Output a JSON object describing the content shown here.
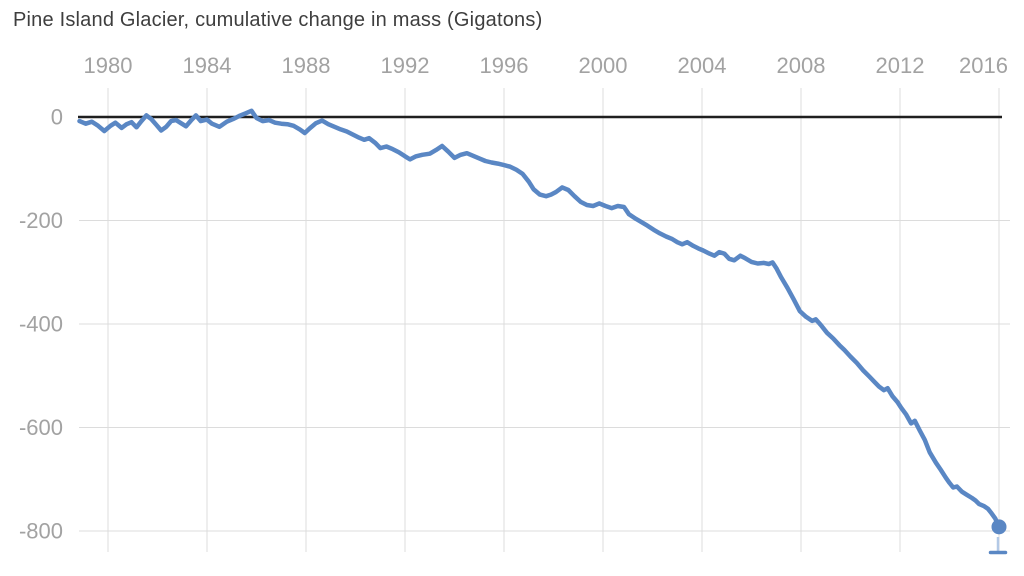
{
  "page": {
    "title": "Pine Island Glacier, cumulative change in mass (Gigatons)"
  },
  "colors": {
    "line": "#5a87c4",
    "end_marker": "#5a87c4",
    "zero_line": "#1f1f1f",
    "gridline": "#dcdcdc",
    "tick_label": "#a2a2a2",
    "title_text": "#3e3e3e",
    "scrubber_stem": "#b3c9e6",
    "scrubber_handle": "#5a87c4"
  },
  "chart_data": {
    "type": "line",
    "title": "Pine Island Glacier, cumulative change in mass (Gigatons)",
    "xlabel": "",
    "ylabel": "",
    "unit": "Gigatons",
    "grid": true,
    "legend_position": "none",
    "x_ticks": [
      1980,
      1984,
      1988,
      1992,
      1996,
      2000,
      2004,
      2008,
      2012,
      2016
    ],
    "y_ticks": [
      0,
      -200,
      -400,
      -600,
      -800
    ],
    "xlim": [
      1978.8,
      2016.45
    ],
    "ylim": [
      56,
      -841
    ],
    "end_point": {
      "x": 2016.0,
      "y": -792
    },
    "series": [
      {
        "name": "Cumulative change in mass (Gigatons)",
        "points": [
          [
            1978.85,
            -8
          ],
          [
            1979.1,
            -13
          ],
          [
            1979.35,
            -9
          ],
          [
            1979.6,
            -17
          ],
          [
            1979.85,
            -27
          ],
          [
            1980.1,
            -17
          ],
          [
            1980.3,
            -11
          ],
          [
            1980.55,
            -21
          ],
          [
            1980.75,
            -14
          ],
          [
            1980.95,
            -10
          ],
          [
            1981.15,
            -20
          ],
          [
            1981.35,
            -8
          ],
          [
            1981.55,
            3
          ],
          [
            1981.75,
            -4
          ],
          [
            1981.95,
            -15
          ],
          [
            1982.15,
            -26
          ],
          [
            1982.35,
            -19
          ],
          [
            1982.55,
            -8
          ],
          [
            1982.75,
            -6
          ],
          [
            1982.95,
            -12
          ],
          [
            1983.15,
            -18
          ],
          [
            1983.35,
            -7
          ],
          [
            1983.55,
            3
          ],
          [
            1983.75,
            -8
          ],
          [
            1984.0,
            -5
          ],
          [
            1984.2,
            -13
          ],
          [
            1984.5,
            -19
          ],
          [
            1984.8,
            -9
          ],
          [
            1985.05,
            -4
          ],
          [
            1985.3,
            2
          ],
          [
            1985.55,
            7
          ],
          [
            1985.8,
            12
          ],
          [
            1986.0,
            -2
          ],
          [
            1986.25,
            -8
          ],
          [
            1986.5,
            -6
          ],
          [
            1986.75,
            -11
          ],
          [
            1987.0,
            -13
          ],
          [
            1987.25,
            -14
          ],
          [
            1987.5,
            -17
          ],
          [
            1987.75,
            -24
          ],
          [
            1987.95,
            -31
          ],
          [
            1988.15,
            -22
          ],
          [
            1988.4,
            -12
          ],
          [
            1988.65,
            -7
          ],
          [
            1988.9,
            -14
          ],
          [
            1989.15,
            -19
          ],
          [
            1989.4,
            -24
          ],
          [
            1989.65,
            -28
          ],
          [
            1989.9,
            -34
          ],
          [
            1990.15,
            -40
          ],
          [
            1990.35,
            -44
          ],
          [
            1990.55,
            -41
          ],
          [
            1990.8,
            -50
          ],
          [
            1991.0,
            -60
          ],
          [
            1991.25,
            -57
          ],
          [
            1991.5,
            -62
          ],
          [
            1991.75,
            -68
          ],
          [
            1992.0,
            -76
          ],
          [
            1992.2,
            -82
          ],
          [
            1992.45,
            -76
          ],
          [
            1992.7,
            -73
          ],
          [
            1993.0,
            -71
          ],
          [
            1993.25,
            -64
          ],
          [
            1993.5,
            -56
          ],
          [
            1993.75,
            -67
          ],
          [
            1994.0,
            -79
          ],
          [
            1994.25,
            -73
          ],
          [
            1994.5,
            -70
          ],
          [
            1994.75,
            -75
          ],
          [
            1995.0,
            -80
          ],
          [
            1995.25,
            -85
          ],
          [
            1995.5,
            -88
          ],
          [
            1995.75,
            -90
          ],
          [
            1996.0,
            -93
          ],
          [
            1996.25,
            -96
          ],
          [
            1996.5,
            -102
          ],
          [
            1996.75,
            -110
          ],
          [
            1997.0,
            -125
          ],
          [
            1997.2,
            -140
          ],
          [
            1997.45,
            -150
          ],
          [
            1997.7,
            -153
          ],
          [
            1997.9,
            -150
          ],
          [
            1998.1,
            -145
          ],
          [
            1998.35,
            -136
          ],
          [
            1998.6,
            -141
          ],
          [
            1998.85,
            -153
          ],
          [
            1999.1,
            -164
          ],
          [
            1999.35,
            -170
          ],
          [
            1999.6,
            -172
          ],
          [
            1999.85,
            -167
          ],
          [
            2000.1,
            -172
          ],
          [
            2000.35,
            -176
          ],
          [
            2000.6,
            -172
          ],
          [
            2000.85,
            -174
          ],
          [
            2001.05,
            -188
          ],
          [
            2001.3,
            -196
          ],
          [
            2001.55,
            -203
          ],
          [
            2001.8,
            -210
          ],
          [
            2002.05,
            -218
          ],
          [
            2002.3,
            -225
          ],
          [
            2002.55,
            -231
          ],
          [
            2002.8,
            -236
          ],
          [
            2003.0,
            -242
          ],
          [
            2003.2,
            -246
          ],
          [
            2003.4,
            -242
          ],
          [
            2003.65,
            -249
          ],
          [
            2003.85,
            -254
          ],
          [
            2004.05,
            -258
          ],
          [
            2004.3,
            -264
          ],
          [
            2004.5,
            -268
          ],
          [
            2004.7,
            -261
          ],
          [
            2004.9,
            -264
          ],
          [
            2005.1,
            -274
          ],
          [
            2005.3,
            -277
          ],
          [
            2005.55,
            -268
          ],
          [
            2005.75,
            -273
          ],
          [
            2006.0,
            -280
          ],
          [
            2006.25,
            -283
          ],
          [
            2006.5,
            -282
          ],
          [
            2006.7,
            -284
          ],
          [
            2006.85,
            -281
          ],
          [
            2007.0,
            -292
          ],
          [
            2007.2,
            -310
          ],
          [
            2007.45,
            -330
          ],
          [
            2007.7,
            -352
          ],
          [
            2007.95,
            -375
          ],
          [
            2008.2,
            -386
          ],
          [
            2008.45,
            -394
          ],
          [
            2008.6,
            -391
          ],
          [
            2008.8,
            -402
          ],
          [
            2009.05,
            -417
          ],
          [
            2009.3,
            -428
          ],
          [
            2009.55,
            -441
          ],
          [
            2009.75,
            -450
          ],
          [
            2010.0,
            -463
          ],
          [
            2010.25,
            -475
          ],
          [
            2010.5,
            -489
          ],
          [
            2010.75,
            -501
          ],
          [
            2010.95,
            -511
          ],
          [
            2011.15,
            -521
          ],
          [
            2011.35,
            -528
          ],
          [
            2011.5,
            -524
          ],
          [
            2011.7,
            -540
          ],
          [
            2011.9,
            -551
          ],
          [
            2012.05,
            -562
          ],
          [
            2012.25,
            -575
          ],
          [
            2012.45,
            -592
          ],
          [
            2012.6,
            -587
          ],
          [
            2012.8,
            -606
          ],
          [
            2013.0,
            -624
          ],
          [
            2013.2,
            -648
          ],
          [
            2013.45,
            -668
          ],
          [
            2013.65,
            -682
          ],
          [
            2013.85,
            -697
          ],
          [
            2014.0,
            -707
          ],
          [
            2014.15,
            -716
          ],
          [
            2014.3,
            -714
          ],
          [
            2014.5,
            -724
          ],
          [
            2014.7,
            -730
          ],
          [
            2014.9,
            -736
          ],
          [
            2015.05,
            -741
          ],
          [
            2015.2,
            -748
          ],
          [
            2015.4,
            -752
          ],
          [
            2015.55,
            -757
          ],
          [
            2015.7,
            -766
          ],
          [
            2015.85,
            -776
          ],
          [
            2016.0,
            -792
          ]
        ]
      }
    ]
  }
}
